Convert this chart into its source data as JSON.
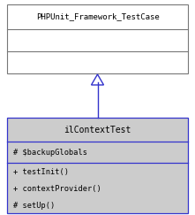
{
  "top_class": {
    "name": "PHPUnit_Framework_TestCase",
    "border_color": "#777777",
    "bg_color": "#ffffff",
    "title_font_size": 6.5
  },
  "bottom_class": {
    "name": "ilContextTest",
    "border_color": "#3333cc",
    "bg_color": "#cccccc",
    "title_font_size": 7.0,
    "section2_text": "# $backupGlobals",
    "section3_lines": [
      "+ testInit()",
      "+ contextProvider()",
      "# setUp()"
    ],
    "text_font_size": 6.2
  },
  "arrow_color": "#3333cc",
  "bg_color": "#ffffff",
  "fig_width": 2.21,
  "fig_height": 2.43,
  "dpi": 100
}
